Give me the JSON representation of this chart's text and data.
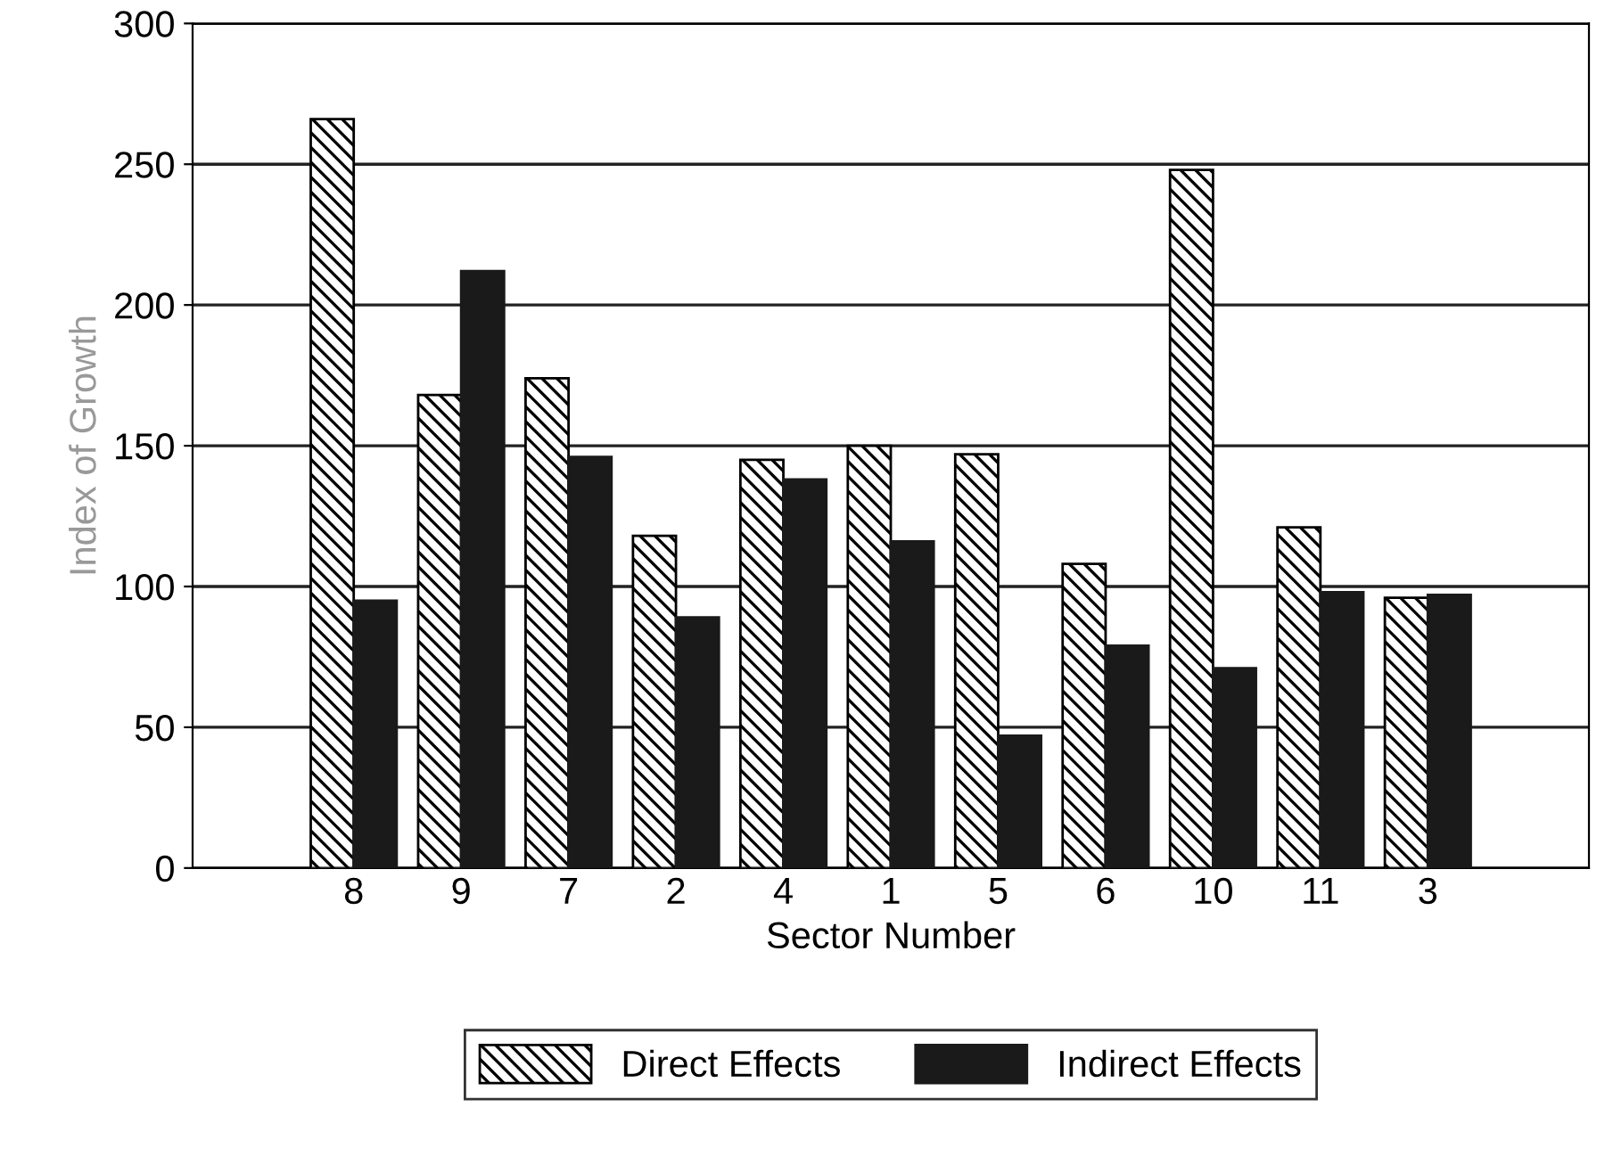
{
  "chart_data": {
    "type": "bar",
    "xlabel": "Sector Number",
    "ylabel": "Index of Growth",
    "categories": [
      null,
      "8",
      "9",
      "7",
      "2",
      "4",
      "1",
      "5",
      "6",
      "10",
      "11",
      "3",
      null
    ],
    "series": [
      {
        "name": "Direct Effects",
        "color": "#000000",
        "values": [
          null,
          266,
          168,
          174,
          118,
          145,
          150,
          147,
          108,
          248,
          121,
          96,
          null
        ]
      },
      {
        "name": "Indirect Effects",
        "color": "#1a1a1a",
        "values": [
          null,
          95,
          212,
          146,
          89,
          138,
          116,
          47,
          79,
          71,
          98,
          97,
          null
        ]
      }
    ],
    "ylim": [
      0,
      300
    ],
    "yticks": [
      0,
      50,
      100,
      150,
      200,
      250,
      300
    ],
    "grid": "y",
    "legend": "bottom"
  }
}
